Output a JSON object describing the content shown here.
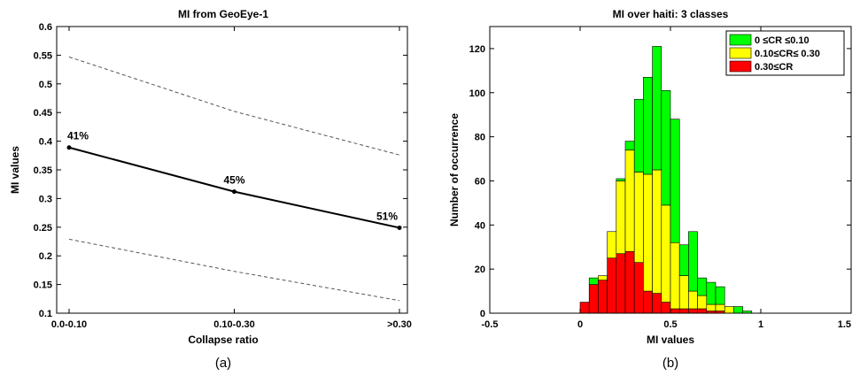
{
  "chart_data": [
    {
      "type": "line",
      "title": "MI from GeoEye-1",
      "xlabel": "Collapse ratio",
      "ylabel": "MI values",
      "caption": "(a)",
      "categories": [
        "0.0-0.10",
        "0.10-0.30",
        ">0.30"
      ],
      "ylim": [
        0.1,
        0.6
      ],
      "yticks": [
        "0.1",
        "0.15",
        "0.2",
        "0.25",
        "0.3",
        "0.35",
        "0.4",
        "0.45",
        "0.5",
        "0.55",
        "0.6"
      ],
      "series": [
        {
          "values": [
            0.389,
            0.312,
            0.249
          ],
          "style": "solid",
          "markers": true,
          "color": "#000000"
        },
        {
          "values": [
            0.547,
            0.452,
            0.376
          ],
          "style": "dashed",
          "color": "#555555"
        },
        {
          "values": [
            0.229,
            0.173,
            0.122
          ],
          "style": "dashed",
          "color": "#555555"
        }
      ],
      "annotations": [
        "41%",
        "45%",
        "51%"
      ],
      "grid": false
    },
    {
      "type": "bar",
      "stacked": true,
      "title": "MI over haiti: 3 classes",
      "xlabel": "MI values",
      "ylabel": "Number of occurrence",
      "caption": "(b)",
      "xlim": [
        -0.5,
        1.5
      ],
      "ylim": [
        0,
        130
      ],
      "xticks": [
        "-0.5",
        "0",
        "0.5",
        "1",
        "1.5"
      ],
      "yticks": [
        "0",
        "20",
        "40",
        "60",
        "80",
        "100",
        "120"
      ],
      "bin_width": 0.05,
      "bin_centers": [
        0.025,
        0.075,
        0.125,
        0.175,
        0.225,
        0.275,
        0.325,
        0.375,
        0.425,
        0.475,
        0.525,
        0.575,
        0.625,
        0.675,
        0.725,
        0.775,
        0.825,
        0.875,
        0.925
      ],
      "legend_position": "top-right",
      "series": [
        {
          "name": "0.30≤CR",
          "color": "#ff0000",
          "values": [
            5,
            13,
            15,
            25,
            27,
            28,
            23,
            10,
            9,
            5,
            2,
            2,
            2,
            2,
            1,
            1,
            0,
            0,
            0
          ]
        },
        {
          "name": "0.10≤CR≤ 0.30",
          "color": "#ffff00",
          "values": [
            0,
            0,
            2,
            12,
            33,
            46,
            41,
            53,
            56,
            44,
            30,
            15,
            8,
            6,
            3,
            3,
            3,
            0,
            0
          ]
        },
        {
          "name": "0 ≤CR ≤0.10",
          "color": "#00ff00",
          "values": [
            0,
            3,
            0,
            0,
            1,
            4,
            33,
            44,
            56,
            52,
            56,
            14,
            27,
            8,
            10,
            8,
            0,
            3,
            1
          ]
        }
      ],
      "grid": false
    }
  ]
}
